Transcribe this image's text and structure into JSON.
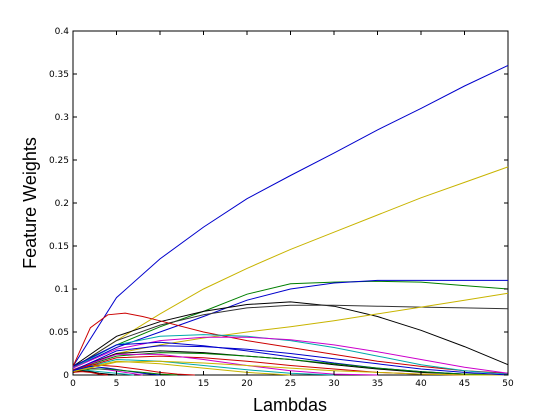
{
  "chart_data": {
    "type": "line",
    "title": "",
    "xlabel": "Lambdas",
    "ylabel": "Feature Weights",
    "xlim": [
      0,
      50
    ],
    "ylim": [
      0,
      0.4
    ],
    "xticks": [
      0,
      5,
      10,
      15,
      20,
      25,
      30,
      35,
      40,
      45,
      50
    ],
    "yticks": [
      0,
      0.05,
      0.1,
      0.15,
      0.2,
      0.25,
      0.3,
      0.35,
      0.4
    ],
    "grid": false,
    "legend": "none",
    "series": [
      {
        "color": "#0000cc",
        "x": [
          0,
          5,
          10,
          15,
          20,
          25,
          30,
          35,
          40,
          45,
          50
        ],
        "y": [
          0.01,
          0.09,
          0.135,
          0.172,
          0.205,
          0.232,
          0.258,
          0.285,
          0.31,
          0.336,
          0.36
        ]
      },
      {
        "color": "#c8b400",
        "x": [
          0,
          5,
          10,
          15,
          20,
          25,
          30,
          35,
          40,
          45,
          50
        ],
        "y": [
          0.008,
          0.04,
          0.071,
          0.1,
          0.124,
          0.146,
          0.166,
          0.186,
          0.206,
          0.224,
          0.242
        ]
      },
      {
        "color": "#007f00",
        "x": [
          0,
          5,
          10,
          15,
          20,
          25,
          30,
          35,
          40,
          45,
          50
        ],
        "y": [
          0.01,
          0.035,
          0.056,
          0.074,
          0.094,
          0.106,
          0.108,
          0.109,
          0.108,
          0.104,
          0.1
        ]
      },
      {
        "color": "#0000cc",
        "x": [
          0,
          5,
          10,
          15,
          20,
          25,
          30,
          35,
          40,
          45,
          50
        ],
        "y": [
          0.008,
          0.032,
          0.05,
          0.068,
          0.087,
          0.1,
          0.107,
          0.11,
          0.11,
          0.11,
          0.11
        ]
      },
      {
        "color": "#000000",
        "x": [
          0,
          5,
          10,
          15,
          20,
          25,
          30,
          35,
          40,
          45,
          50
        ],
        "y": [
          0.01,
          0.045,
          0.062,
          0.074,
          0.082,
          0.085,
          0.08,
          0.068,
          0.052,
          0.033,
          0.012
        ]
      },
      {
        "color": "#333333",
        "x": [
          0,
          5,
          10,
          15,
          20,
          25,
          30,
          35,
          40,
          45,
          50
        ],
        "y": [
          0.008,
          0.04,
          0.058,
          0.07,
          0.078,
          0.081,
          0.081,
          0.08,
          0.079,
          0.078,
          0.077
        ]
      },
      {
        "color": "#c8b400",
        "x": [
          0,
          5,
          10,
          15,
          20,
          25,
          30,
          35,
          40,
          45,
          50
        ],
        "y": [
          0.006,
          0.025,
          0.035,
          0.043,
          0.05,
          0.056,
          0.063,
          0.071,
          0.079,
          0.087,
          0.095
        ]
      },
      {
        "color": "#cc0000",
        "x": [
          0,
          2,
          4,
          6,
          8,
          10,
          15,
          20,
          25,
          30,
          35,
          40,
          45,
          50
        ],
        "y": [
          0.01,
          0.055,
          0.07,
          0.072,
          0.068,
          0.063,
          0.05,
          0.04,
          0.032,
          0.024,
          0.016,
          0.01,
          0.005,
          0.002
        ]
      },
      {
        "color": "#00aaaa",
        "x": [
          0,
          5,
          10,
          15,
          20,
          25,
          30,
          35,
          40,
          45,
          50
        ],
        "y": [
          0.008,
          0.035,
          0.045,
          0.047,
          0.045,
          0.04,
          0.032,
          0.022,
          0.012,
          0.005,
          0.001
        ]
      },
      {
        "color": "#cc00cc",
        "x": [
          0,
          5,
          10,
          15,
          20,
          25,
          30,
          35,
          40,
          45,
          50
        ],
        "y": [
          0.008,
          0.03,
          0.04,
          0.044,
          0.044,
          0.041,
          0.035,
          0.027,
          0.018,
          0.009,
          0.002
        ]
      },
      {
        "color": "#0000cc",
        "x": [
          0,
          5,
          10,
          15,
          20,
          25,
          30,
          35,
          40,
          45,
          50
        ],
        "y": [
          0.01,
          0.035,
          0.038,
          0.034,
          0.028,
          0.021,
          0.014,
          0.008,
          0.004,
          0.001,
          0
        ]
      },
      {
        "color": "#000000",
        "x": [
          0,
          5,
          10,
          15,
          20,
          25,
          30,
          35,
          40,
          45,
          50
        ],
        "y": [
          0.006,
          0.025,
          0.028,
          0.026,
          0.022,
          0.018,
          0.012,
          0.007,
          0.003,
          0.001,
          0
        ]
      },
      {
        "color": "#007f00",
        "x": [
          0,
          5,
          10,
          15,
          20,
          25,
          30,
          35,
          40,
          45,
          50
        ],
        "y": [
          0.006,
          0.022,
          0.026,
          0.025,
          0.022,
          0.018,
          0.013,
          0.008,
          0.004,
          0.001,
          0
        ]
      },
      {
        "color": "#cc0000",
        "x": [
          0,
          5,
          10,
          15,
          20,
          25,
          30,
          35,
          40,
          45,
          50
        ],
        "y": [
          0.005,
          0.02,
          0.022,
          0.02,
          0.016,
          0.011,
          0.007,
          0.003,
          0.001,
          0,
          0
        ]
      },
      {
        "color": "#cc00cc",
        "x": [
          0,
          5,
          10,
          15,
          20,
          25,
          30,
          35
        ],
        "y": [
          0.006,
          0.024,
          0.024,
          0.018,
          0.011,
          0.005,
          0.001,
          0
        ]
      },
      {
        "color": "#00aaaa",
        "x": [
          0,
          5,
          10,
          15,
          20,
          25,
          30
        ],
        "y": [
          0.005,
          0.018,
          0.016,
          0.011,
          0.006,
          0.002,
          0
        ]
      },
      {
        "color": "#c8b400",
        "x": [
          0,
          5,
          10,
          15,
          20,
          25
        ],
        "y": [
          0.005,
          0.016,
          0.013,
          0.008,
          0.003,
          0
        ]
      },
      {
        "color": "#cc0000",
        "x": [
          0,
          2,
          5,
          8,
          10,
          12,
          14
        ],
        "y": [
          0.006,
          0.012,
          0.01,
          0.006,
          0.003,
          0.001,
          0
        ]
      },
      {
        "color": "#0000cc",
        "x": [
          0,
          2,
          4,
          6,
          8,
          10
        ],
        "y": [
          0.005,
          0.01,
          0.008,
          0.005,
          0.002,
          0
        ]
      },
      {
        "color": "#cc00cc",
        "x": [
          0,
          2,
          4,
          6,
          8
        ],
        "y": [
          0.004,
          0.008,
          0.006,
          0.003,
          0
        ]
      },
      {
        "color": "#007f00",
        "x": [
          0,
          2,
          4,
          6,
          8,
          10,
          12
        ],
        "y": [
          0.003,
          0.007,
          0.007,
          0.005,
          0.003,
          0.001,
          0
        ]
      },
      {
        "color": "#00aaaa",
        "x": [
          0,
          1,
          3,
          5,
          7
        ],
        "y": [
          0.004,
          0.006,
          0.004,
          0.002,
          0
        ]
      },
      {
        "color": "#000000",
        "x": [
          0,
          1,
          2,
          3,
          4,
          5
        ],
        "y": [
          0.003,
          0.005,
          0.004,
          0.002,
          0.001,
          0
        ]
      },
      {
        "color": "#cc0000",
        "x": [
          0,
          1,
          2,
          3,
          4
        ],
        "y": [
          0.003,
          0.004,
          0.003,
          0.001,
          0
        ]
      },
      {
        "color": "#c8b400",
        "x": [
          0,
          5,
          10,
          15,
          20,
          25,
          30,
          35,
          40,
          45,
          50
        ],
        "y": [
          0.004,
          0.015,
          0.016,
          0.014,
          0.011,
          0.008,
          0.005,
          0.003,
          0.001,
          0,
          0
        ]
      },
      {
        "color": "#0000cc",
        "x": [
          0,
          5,
          10,
          15,
          20,
          25,
          30,
          35,
          40,
          45,
          50
        ],
        "y": [
          0.005,
          0.028,
          0.034,
          0.033,
          0.03,
          0.025,
          0.019,
          0.013,
          0.007,
          0.003,
          0
        ]
      }
    ]
  }
}
